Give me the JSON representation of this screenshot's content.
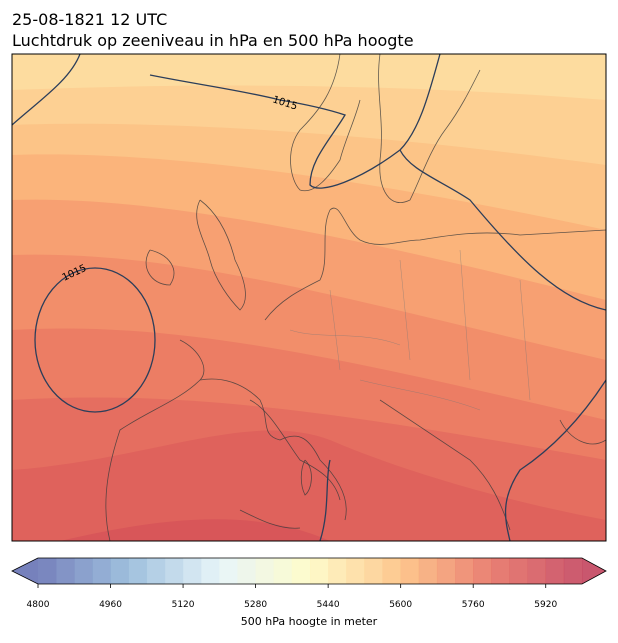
{
  "header": {
    "date": "25-08-1821 12 UTC",
    "title": "Luchtdruk op zeeniveau in hPa en 500 hPa hoogte"
  },
  "map": {
    "isobar_labels": [
      1015,
      1015
    ]
  },
  "colorbar": {
    "label": "500 hPa hoogte in meter",
    "lim": [
      4800,
      6000
    ],
    "ticks": [
      4800,
      4960,
      5120,
      5280,
      5440,
      5600,
      5760,
      5920
    ]
  }
}
